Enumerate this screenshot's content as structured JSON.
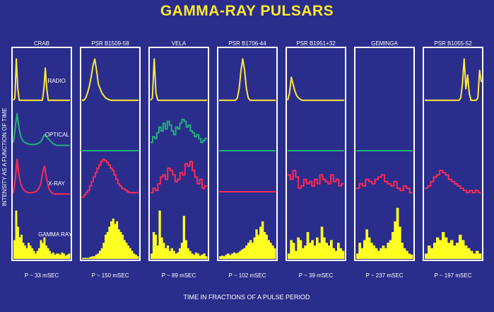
{
  "chart_data": {
    "type": "line",
    "title": "GAMMA-RAY PULSARS",
    "xlabel": "TIME IN FRACTIONS OF A PULSE PERIOD",
    "ylabel": "INTENSITY AS A FUNCTION OF TIME",
    "row_labels": [
      "RADIO",
      "OPTICAL",
      "X-RAY",
      "GAMMA RAY"
    ],
    "colors": {
      "background": "#2a2d8c",
      "panel_border": "#ffffff",
      "title": "#ffea2a",
      "radio": "#ffe83a",
      "optical": "#22b07a",
      "xray": "#ff2a55",
      "gamma": "#ffff22",
      "text": "#ffffff"
    },
    "pulsars": [
      {
        "name": "CRAB",
        "period": "P ~ 33 mSEC",
        "radio": [
          0.05,
          0.1,
          0.95,
          0.3,
          0.05,
          0.05,
          0.05,
          0.05,
          0.05,
          0.05,
          0.05,
          0.05,
          0.05,
          0.05,
          0.05,
          0.05,
          0.05,
          0.05,
          0.05,
          0.05,
          0.05,
          0.3,
          0.75,
          0.3,
          0.05,
          0.05,
          0.05,
          0.05,
          0.05,
          0.05,
          0.05,
          0.05,
          0.05,
          0.05,
          0.05,
          0.05,
          0.05,
          0.05,
          0.05,
          0.05
        ],
        "optical": [
          0.2,
          0.6,
          0.95,
          0.6,
          0.35,
          0.25,
          0.2,
          0.18,
          0.16,
          0.15,
          0.14,
          0.14,
          0.15,
          0.16,
          0.18,
          0.22,
          0.3,
          0.4,
          0.35,
          0.3,
          0.25,
          0.2,
          0.16,
          0.13,
          0.12,
          0.12,
          0.12,
          0.12,
          0.12,
          0.12,
          0.12,
          0.12
        ],
        "xray": [
          0.2,
          0.5,
          0.95,
          0.6,
          0.4,
          0.3,
          0.25,
          0.22,
          0.2,
          0.2,
          0.2,
          0.21,
          0.22,
          0.25,
          0.3,
          0.4,
          0.65,
          0.8,
          0.55,
          0.35,
          0.25,
          0.2,
          0.18,
          0.17,
          0.17,
          0.17,
          0.17,
          0.17,
          0.17,
          0.17,
          0.17,
          0.17
        ],
        "gamma": [
          0.35,
          0.9,
          0.6,
          0.4,
          0.45,
          0.3,
          0.25,
          0.2,
          0.3,
          0.25,
          0.2,
          0.15,
          0.1,
          0.15,
          0.2,
          0.35,
          0.3,
          0.4,
          0.25,
          0.2,
          0.15,
          0.1,
          0.12,
          0.08,
          0.1,
          0.1,
          0.08,
          0.12,
          0.1,
          0.06,
          0.08,
          0.1
        ]
      },
      {
        "name": "PSR B1509-58",
        "period": "P ~ 150 mSEC",
        "radio": [
          0.05,
          0.05,
          0.1,
          0.2,
          0.35,
          0.55,
          0.8,
          0.95,
          0.7,
          0.4,
          0.3,
          0.2,
          0.15,
          0.1,
          0.08,
          0.06,
          0.05,
          0.05,
          0.05,
          0.05,
          0.05,
          0.05,
          0.05,
          0.05,
          0.05,
          0.05,
          0.05,
          0.05,
          0.05,
          0.05,
          0.05,
          0.05
        ],
        "optical": [
          0.5
        ],
        "xray": [
          0.1,
          0.15,
          0.2,
          0.25,
          0.35,
          0.45,
          0.55,
          0.65,
          0.75,
          0.82,
          0.9,
          0.95,
          0.92,
          0.88,
          0.82,
          0.75,
          0.7,
          0.6,
          0.5,
          0.4,
          0.35,
          0.3,
          0.28,
          0.25,
          0.22,
          0.2,
          0.2,
          0.2,
          0.2,
          0.2
        ],
        "gamma": [
          0.02,
          0.02,
          0.02,
          0.02,
          0.04,
          0.05,
          0.05,
          0.08,
          0.1,
          0.15,
          0.2,
          0.3,
          0.45,
          0.5,
          0.6,
          0.7,
          0.75,
          0.65,
          0.7,
          0.55,
          0.5,
          0.45,
          0.35,
          0.3,
          0.25,
          0.2,
          0.15,
          0.1,
          0.08,
          0.05
        ]
      },
      {
        "name": "VELA",
        "period": "P ~ 89 mSEC",
        "radio": [
          0.05,
          0.1,
          0.95,
          0.2,
          0.05,
          0.05,
          0.05,
          0.05,
          0.05,
          0.05,
          0.05,
          0.05,
          0.05,
          0.05,
          0.05,
          0.05,
          0.05,
          0.05,
          0.05,
          0.05,
          0.05,
          0.05,
          0.05,
          0.05,
          0.05,
          0.05,
          0.05,
          0.05,
          0.05,
          0.05,
          0.05,
          0.05
        ],
        "optical": [
          0.2,
          0.35,
          0.3,
          0.45,
          0.6,
          0.5,
          0.7,
          0.55,
          0.75,
          0.65,
          0.5,
          0.4,
          0.6,
          0.55,
          0.7,
          0.8,
          0.75,
          0.6,
          0.65,
          0.5,
          0.45,
          0.35,
          0.4,
          0.3,
          0.2,
          0.25,
          0.3
        ],
        "xray": [
          0.2,
          0.3,
          0.25,
          0.4,
          0.55,
          0.6,
          0.5,
          0.75,
          0.7,
          0.6,
          0.45,
          0.5,
          0.65,
          0.6,
          0.85,
          0.8,
          0.9,
          0.7,
          0.55,
          0.4,
          0.5,
          0.3,
          0.35
        ],
        "gamma": [
          0.1,
          0.5,
          0.45,
          0.25,
          0.9,
          0.4,
          0.3,
          0.2,
          0.25,
          0.15,
          0.2,
          0.15,
          0.1,
          0.12,
          0.2,
          0.3,
          0.8,
          0.35,
          0.2,
          0.15,
          0.1,
          0.08,
          0.12,
          0.1,
          0.06,
          0.08,
          0.1,
          0.05
        ]
      },
      {
        "name": "PSR B1706-44",
        "period": "P ~ 102 mSEC",
        "radio": [
          0.05,
          0.05,
          0.05,
          0.05,
          0.05,
          0.05,
          0.05,
          0.05,
          0.05,
          0.05,
          0.1,
          0.3,
          0.7,
          0.95,
          0.7,
          0.3,
          0.1,
          0.05,
          0.05,
          0.05,
          0.05,
          0.05,
          0.05,
          0.05,
          0.05,
          0.05,
          0.05,
          0.05,
          0.05,
          0.05,
          0.05,
          0.05
        ],
        "optical": [
          0.5
        ],
        "xray": [
          0.3
        ],
        "gamma": [
          0.05,
          0.06,
          0.05,
          0.08,
          0.1,
          0.07,
          0.1,
          0.12,
          0.1,
          0.12,
          0.15,
          0.18,
          0.2,
          0.25,
          0.3,
          0.35,
          0.3,
          0.4,
          0.55,
          0.45,
          0.6,
          0.7,
          0.5,
          0.45,
          0.35,
          0.3,
          0.25,
          0.2
        ]
      },
      {
        "name": "PSR B1951+32",
        "period": "P ~ 39 mSEC",
        "radio": [
          0.05,
          0.2,
          0.55,
          0.4,
          0.25,
          0.15,
          0.1,
          0.07,
          0.05,
          0.05,
          0.05,
          0.05,
          0.05,
          0.05,
          0.05,
          0.05,
          0.05,
          0.05,
          0.05,
          0.05,
          0.05,
          0.05,
          0.05,
          0.05,
          0.05,
          0.05,
          0.05,
          0.05,
          0.05,
          0.05,
          0.05,
          0.05
        ],
        "optical": [
          0.5
        ],
        "xray": [
          0.6,
          0.5,
          0.7,
          0.55,
          0.3,
          0.35,
          0.5,
          0.4,
          0.45,
          0.35,
          0.5,
          0.4,
          0.6,
          0.5,
          0.45,
          0.4,
          0.6,
          0.45,
          0.5,
          0.35,
          0.4
        ],
        "gamma": [
          0.1,
          0.35,
          0.3,
          0.15,
          0.4,
          0.35,
          0.2,
          0.25,
          0.5,
          0.3,
          0.35,
          0.25,
          0.4,
          0.3,
          0.6,
          0.4,
          0.3,
          0.25,
          0.35,
          0.2,
          0.15,
          0.3,
          0.2,
          0.15
        ]
      },
      {
        "name": "GEMINGA",
        "period": "P ~  237 mSEC",
        "radio": [],
        "optical": [
          0.5
        ],
        "xray": [
          0.3,
          0.4,
          0.35,
          0.5,
          0.45,
          0.4,
          0.5,
          0.55,
          0.6,
          0.45,
          0.4,
          0.35,
          0.45,
          0.3,
          0.25,
          0.35,
          0.3,
          0.2
        ],
        "gamma": [
          0.1,
          0.3,
          0.2,
          0.35,
          0.55,
          0.4,
          0.3,
          0.25,
          0.2,
          0.15,
          0.2,
          0.25,
          0.2,
          0.3,
          0.35,
          0.5,
          0.7,
          0.95,
          0.6,
          0.3,
          0.2,
          0.15,
          0.1,
          0.08
        ]
      },
      {
        "name": "PSR B1055-52",
        "period": "P ~ 197 mSEC",
        "radio": [
          0.05,
          0.05,
          0.05,
          0.05,
          0.05,
          0.05,
          0.05,
          0.05,
          0.05,
          0.05,
          0.05,
          0.05,
          0.05,
          0.05,
          0.05,
          0.05,
          0.05,
          0.05,
          0.05,
          0.05,
          0.05,
          0.1,
          0.4,
          0.95,
          0.3,
          0.6,
          0.2,
          0.05,
          0.05,
          0.05,
          0.05,
          0.1,
          0.7,
          0.45
        ],
        "optical": [],
        "xray": [
          0.3,
          0.35,
          0.45,
          0.55,
          0.6,
          0.7,
          0.65,
          0.6,
          0.5,
          0.45,
          0.4,
          0.35,
          0.3,
          0.25,
          0.2,
          0.25,
          0.2,
          0.25,
          0.2
        ],
        "gamma": [
          0.1,
          0.25,
          0.2,
          0.3,
          0.4,
          0.35,
          0.5,
          0.4,
          0.3,
          0.35,
          0.25,
          0.3,
          0.45,
          0.35,
          0.25,
          0.2,
          0.15,
          0.1,
          0.15,
          0.1
        ]
      }
    ]
  }
}
